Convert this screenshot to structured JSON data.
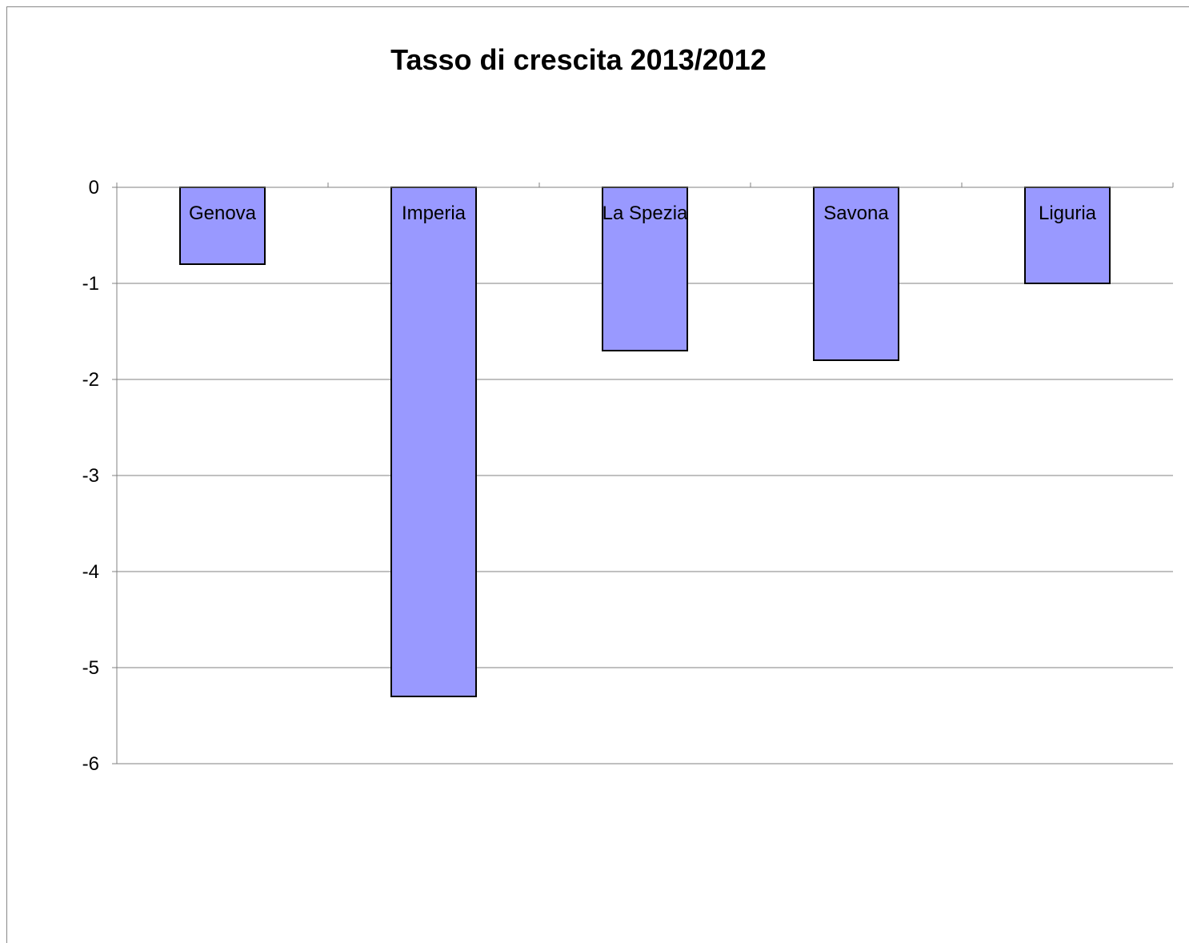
{
  "chart_data": {
    "type": "bar",
    "title": "Tasso di crescita 2013/2012",
    "xlabel": "",
    "ylabel": "",
    "categories": [
      "Genova",
      "Imperia",
      "La Spezia",
      "Savona",
      "Liguria"
    ],
    "values": [
      -0.8,
      -5.3,
      -1.7,
      -1.8,
      -1.0
    ],
    "ylim": [
      -6,
      0
    ],
    "yticks": [
      "0",
      "-1",
      "-2",
      "-3",
      "-4",
      "-5",
      "-6"
    ],
    "grid": true,
    "legend": "none",
    "category_labels_position": "inside-top-of-bars",
    "colors": {
      "bar_fill": "#9999ff",
      "bar_stroke": "#000000",
      "gridline": "#808080",
      "axis": "#808080"
    }
  }
}
